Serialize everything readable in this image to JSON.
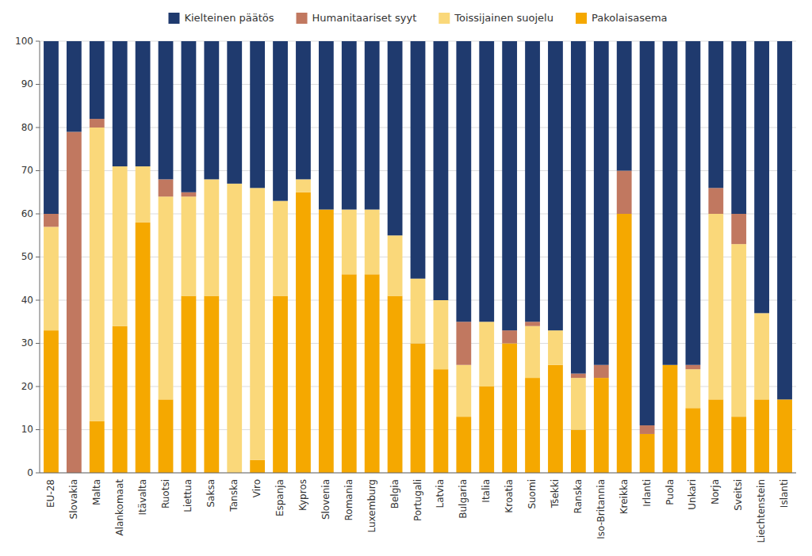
{
  "chart_data": {
    "type": "bar",
    "stacked": true,
    "categories": [
      "EU-28",
      "Slovakia",
      "Malta",
      "Alankomaat",
      "Itävalta",
      "Ruotsi",
      "Liettua",
      "Saksa",
      "Tanska",
      "Viro",
      "Espanja",
      "Kypros",
      "Slovenia",
      "Romania",
      "Luxemburg",
      "Belgia",
      "Portugali",
      "Latvia",
      "Bulgaria",
      "Italia",
      "Kroatia",
      "Suomi",
      "Tšekki",
      "Ranska",
      "Iso-Britannia",
      "Kreikka",
      "Irlanti",
      "Puola",
      "Unkari",
      "Norja",
      "Sveitsi",
      "Liechtenstein",
      "Islanti"
    ],
    "series": [
      {
        "name": "Pakolaisasema",
        "color": "#F5A800",
        "values": [
          33,
          0,
          12,
          34,
          58,
          17,
          41,
          41,
          0,
          3,
          41,
          65,
          61,
          46,
          46,
          41,
          30,
          24,
          13,
          20,
          30,
          22,
          25,
          10,
          22,
          60,
          9,
          25,
          15,
          17,
          13,
          17,
          17
        ]
      },
      {
        "name": "Toissijainen suojelu",
        "color": "#FAD87A",
        "values": [
          24,
          0,
          68,
          37,
          13,
          47,
          23,
          27,
          67,
          63,
          22,
          3,
          0,
          15,
          15,
          14,
          15,
          16,
          12,
          15,
          0,
          12,
          8,
          12,
          0,
          0,
          0,
          0,
          9,
          43,
          40,
          20,
          0
        ]
      },
      {
        "name": "Humanitaariset syyt",
        "color": "#C17860",
        "values": [
          3,
          79,
          2,
          0,
          0,
          4,
          1,
          0,
          0,
          0,
          0,
          0,
          0,
          0,
          0,
          0,
          0,
          0,
          10,
          0,
          3,
          1,
          0,
          1,
          3,
          10,
          2,
          0,
          1,
          6,
          7,
          0,
          0
        ]
      },
      {
        "name": "Kielteinen päätös",
        "color": "#1F3A6E",
        "values": [
          40,
          21,
          18,
          29,
          29,
          32,
          35,
          32,
          33,
          34,
          37,
          32,
          39,
          39,
          39,
          45,
          55,
          60,
          65,
          65,
          67,
          65,
          67,
          77,
          75,
          30,
          89,
          75,
          75,
          34,
          40,
          63,
          83
        ]
      }
    ],
    "ylim": [
      0,
      100
    ],
    "yticks": [
      0,
      10,
      20,
      30,
      40,
      50,
      60,
      70,
      80,
      90,
      100
    ],
    "grid": true,
    "legend": "top"
  }
}
